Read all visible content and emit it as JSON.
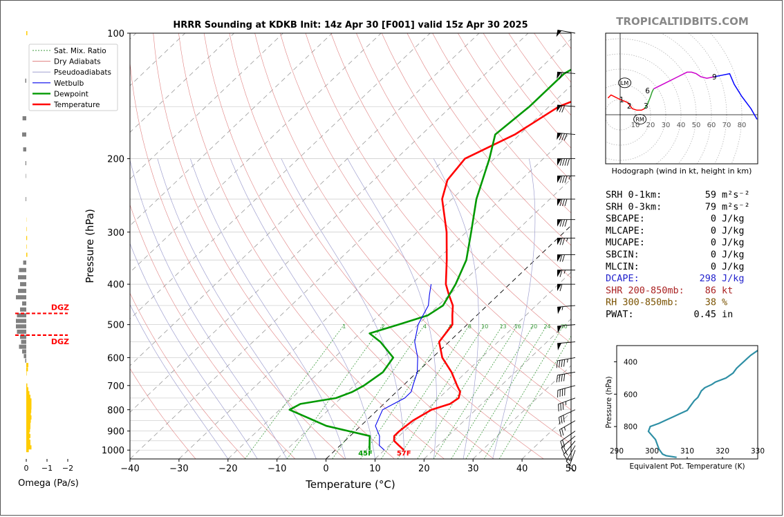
{
  "header": {
    "title": "HRRR Sounding at KDKB Init: 14z Apr 30 [F001] valid 15z Apr 30 2025",
    "watermark": "TROPICALTIDBITS.COM"
  },
  "colors": {
    "temperature": "#ff0000",
    "dewpoint": "#009900",
    "wetbulb": "#0000ee",
    "dry_adiabat": "#e08080",
    "pseudoadiabat": "#a0a0d0",
    "mixing_ratio": "#3c9a3c",
    "isotherm": "#888888",
    "omega_down": "#808080",
    "omega_up": "#ffcc00",
    "hodo_low": "#ff0000",
    "hodo_mid": "#2ca02c",
    "hodo_upper": "#cc00cc",
    "hodo_top": "#0000ff",
    "theta_e": "#2e8fa5",
    "dcape": "#2222cc",
    "shr": "#aa2222",
    "rh": "#7a5200"
  },
  "chart_data": [
    {
      "type": "line",
      "name": "skew-t",
      "xlabel": "Temperature (°C)",
      "ylabel": "Pressure (hPa)",
      "xlim": [
        -40,
        50
      ],
      "ylim": [
        1050,
        100
      ],
      "y_scale": "log",
      "x_ticks": [
        "−40",
        "−30",
        "−20",
        "−10",
        "0",
        "10",
        "20",
        "30",
        "40",
        "50"
      ],
      "x_tick_values": [
        -40,
        -30,
        -20,
        -10,
        0,
        10,
        20,
        30,
        40,
        50
      ],
      "y_ticks": [
        "100",
        "200",
        "300",
        "400",
        "500",
        "600",
        "700",
        "800",
        "900",
        "1000"
      ],
      "y_tick_values": [
        100,
        200,
        300,
        400,
        500,
        600,
        700,
        800,
        900,
        1000
      ],
      "grid": true,
      "legend_position": "top-left",
      "legend": [
        "Sat. Mix. Ratio",
        "Dry Adiabats",
        "Pseudoadiabats",
        "Wetbulb",
        "Dewpoint",
        "Temperature"
      ],
      "mixing_ratio_labels": [
        "1",
        "2",
        "4",
        "6",
        "8",
        "10",
        "13",
        "16",
        "20",
        "24",
        "30",
        "36"
      ],
      "mixing_ratio_values": [
        1,
        2,
        4,
        6,
        8,
        10,
        13,
        16,
        20,
        24,
        30,
        36
      ],
      "surface_labels": {
        "dewpoint": "45F",
        "temperature": "57F"
      },
      "series": [
        {
          "name": "Temperature",
          "points": [
            [
              14,
              1000
            ],
            [
              12,
              975
            ],
            [
              10,
              950
            ],
            [
              9,
              925
            ],
            [
              9,
              900
            ],
            [
              9.5,
              850
            ],
            [
              11,
              800
            ],
            [
              13.5,
              775
            ],
            [
              14,
              750
            ],
            [
              13,
              725
            ],
            [
              11,
              700
            ],
            [
              7,
              650
            ],
            [
              2,
              600
            ],
            [
              -2,
              550
            ],
            [
              -3,
              500
            ],
            [
              -5,
              475
            ],
            [
              -7,
              450
            ],
            [
              -10,
              425
            ],
            [
              -13,
              400
            ],
            [
              -18,
              350
            ],
            [
              -24,
              300
            ],
            [
              -32,
              250
            ],
            [
              -35,
              225
            ],
            [
              -36,
              200
            ],
            [
              -31,
              175
            ],
            [
              -28,
              150
            ],
            [
              -18,
              125
            ],
            [
              -12,
              100
            ]
          ]
        },
        {
          "name": "Dewpoint",
          "points": [
            [
              7,
              1000
            ],
            [
              6,
              975
            ],
            [
              4,
              925
            ],
            [
              -7,
              875
            ],
            [
              -18,
              800
            ],
            [
              -17,
              775
            ],
            [
              -11,
              750
            ],
            [
              -9,
              725
            ],
            [
              -8,
              700
            ],
            [
              -7,
              650
            ],
            [
              -8,
              600
            ],
            [
              -14,
              550
            ],
            [
              -18,
              525
            ],
            [
              -14,
              500
            ],
            [
              -10,
              475
            ],
            [
              -9,
              450
            ],
            [
              -11,
              400
            ],
            [
              -14,
              350
            ],
            [
              -19,
              300
            ],
            [
              -25,
              250
            ],
            [
              -31,
              200
            ],
            [
              -35,
              175
            ],
            [
              -34,
              150
            ],
            [
              -34,
              125
            ],
            [
              -28,
              100
            ]
          ]
        },
        {
          "name": "Wetbulb",
          "points": [
            [
              10,
              1000
            ],
            [
              8,
              975
            ],
            [
              6,
              925
            ],
            [
              3,
              875
            ],
            [
              1,
              800
            ],
            [
              2,
              775
            ],
            [
              3,
              750
            ],
            [
              3,
              725
            ],
            [
              2,
              700
            ],
            [
              0,
              650
            ],
            [
              -3,
              600
            ],
            [
              -7,
              550
            ],
            [
              -10,
              500
            ],
            [
              -11,
              475
            ],
            [
              -12,
              450
            ],
            [
              -14,
              425
            ],
            [
              -16,
              400
            ]
          ]
        }
      ]
    },
    {
      "type": "bar",
      "name": "omega",
      "xlabel": "Omega (Pa/s)",
      "x_ticks": [
        "0",
        "−1",
        "−2"
      ],
      "x_tick_values": [
        0,
        -1,
        -2
      ],
      "dgz_labels": [
        "DGZ",
        "DGZ"
      ],
      "dgz_levels": [
        470,
        530
      ],
      "levels": [
        1000,
        985,
        970,
        955,
        940,
        925,
        910,
        895,
        880,
        865,
        850,
        835,
        820,
        805,
        790,
        775,
        760,
        745,
        730,
        715,
        700,
        685,
        670,
        655,
        640,
        625,
        610,
        595,
        580,
        565,
        550,
        535,
        520,
        505,
        490,
        475,
        460,
        445,
        430,
        415,
        400,
        385,
        370,
        355,
        340,
        325,
        310,
        295,
        280,
        265,
        250,
        235,
        220,
        205,
        190,
        175,
        160,
        145,
        130,
        115,
        100
      ],
      "values": [
        0.12,
        0.25,
        0.2,
        0.2,
        0.15,
        0.2,
        0.15,
        0.18,
        0.2,
        0.2,
        0.22,
        0.25,
        0.22,
        0.24,
        0.25,
        0.25,
        0.25,
        0.2,
        0.15,
        0.1,
        0.05,
        0,
        0,
        0.02,
        0.08,
        0.1,
        -0.05,
        -0.12,
        -0.2,
        -0.35,
        -0.25,
        -0.3,
        -0.45,
        -0.5,
        -0.5,
        -0.45,
        -0.3,
        -0.2,
        -0.5,
        -0.4,
        -0.3,
        -0.4,
        -0.35,
        -0.15,
        0.05,
        0.02,
        0.04,
        0.02,
        0.01,
        0,
        -0.03,
        0,
        -0.02,
        -0.04,
        -0.15,
        -0.2,
        -0.18,
        0,
        -0.05,
        0,
        0.05
      ]
    },
    {
      "type": "line",
      "name": "hodograph",
      "xlabel": "Hodograph (wind in kt, height in km)",
      "ring_labels": [
        "10",
        "20",
        "30",
        "40",
        "50",
        "60",
        "70",
        "80"
      ],
      "ring_values": [
        10,
        20,
        30,
        40,
        50,
        60,
        70,
        80
      ],
      "height_labels": [
        {
          "text": "1",
          "u": 1,
          "v": 10
        },
        {
          "text": "2",
          "u": 6,
          "v": 6
        },
        {
          "text": "3",
          "u": 17,
          "v": 6
        },
        {
          "text": "6",
          "u": 18,
          "v": 16
        },
        {
          "text": "9",
          "u": 62,
          "v": 25
        }
      ],
      "storm_motion": [
        {
          "text": "LM",
          "u": 3,
          "v": 21
        },
        {
          "text": "RM",
          "u": 13,
          "v": -3
        }
      ],
      "series": [
        {
          "name": "0-3 km",
          "points": [
            [
              -8,
              11
            ],
            [
              -6,
              13
            ],
            [
              -4,
              12
            ],
            [
              0,
              10
            ],
            [
              5,
              8
            ],
            [
              8,
              4
            ],
            [
              11,
              3
            ],
            [
              14,
              3
            ],
            [
              16,
              4
            ]
          ]
        },
        {
          "name": "3-6 km",
          "points": [
            [
              16,
              4
            ],
            [
              18,
              7
            ],
            [
              20,
              12
            ],
            [
              21,
              15
            ],
            [
              22,
              17
            ]
          ]
        },
        {
          "name": "6-9 km",
          "points": [
            [
              22,
              17
            ],
            [
              30,
              21
            ],
            [
              38,
              25
            ],
            [
              44,
              28
            ],
            [
              47,
              28
            ],
            [
              50,
              27
            ],
            [
              53,
              25
            ],
            [
              57,
              24
            ],
            [
              62,
              25
            ]
          ]
        },
        {
          "name": "9+ km",
          "points": [
            [
              62,
              25
            ],
            [
              67,
              26
            ],
            [
              72,
              27
            ],
            [
              75,
              20
            ],
            [
              80,
              12
            ],
            [
              86,
              4
            ],
            [
              90,
              -3
            ]
          ]
        }
      ]
    },
    {
      "type": "line",
      "name": "theta-e",
      "xlabel": "Equivalent Pot. Temperature (K)",
      "ylabel": "Pressure (hPa)",
      "xlim": [
        290,
        330
      ],
      "ylim": [
        1000,
        300
      ],
      "x_ticks": [
        "290",
        "300",
        "310",
        "320",
        "330"
      ],
      "x_tick_values": [
        290,
        300,
        310,
        320,
        330
      ],
      "y_ticks": [
        "400",
        "600",
        "800"
      ],
      "y_tick_values": [
        400,
        600,
        800
      ],
      "series": [
        {
          "name": "Theta-e",
          "points": [
            [
              307,
              990
            ],
            [
              304,
              980
            ],
            [
              303,
              970
            ],
            [
              302,
              940
            ],
            [
              301,
              880
            ],
            [
              299,
              830
            ],
            [
              299.5,
              800
            ],
            [
              302,
              780
            ],
            [
              304,
              760
            ],
            [
              306,
              740
            ],
            [
              308,
              720
            ],
            [
              310,
              700
            ],
            [
              311,
              670
            ],
            [
              312,
              640
            ],
            [
              313,
              620
            ],
            [
              313.5,
              600
            ],
            [
              314,
              580
            ],
            [
              315,
              560
            ],
            [
              317,
              540
            ],
            [
              318,
              525
            ],
            [
              321,
              500
            ],
            [
              323,
              470
            ],
            [
              324,
              440
            ],
            [
              325,
              420
            ],
            [
              326,
              400
            ],
            [
              327,
              380
            ],
            [
              328,
              360
            ],
            [
              330,
              330
            ]
          ]
        }
      ]
    }
  ],
  "stats": [
    {
      "label": "SRH 0-1km:",
      "value": "59",
      "unit": "m²s⁻²",
      "color": "#000000"
    },
    {
      "label": "SRH 0-3km:",
      "value": "79",
      "unit": "m²s⁻²",
      "color": "#000000"
    },
    {
      "label": "SBCAPE:",
      "value": "0",
      "unit": "J/kg",
      "color": "#000000"
    },
    {
      "label": "MLCAPE:",
      "value": "0",
      "unit": "J/kg",
      "color": "#000000"
    },
    {
      "label": "MUCAPE:",
      "value": "0",
      "unit": "J/kg",
      "color": "#000000"
    },
    {
      "label": "SBCIN:",
      "value": "0",
      "unit": "J/kg",
      "color": "#000000"
    },
    {
      "label": "MLCIN:",
      "value": "0",
      "unit": "J/kg",
      "color": "#000000"
    },
    {
      "label": "DCAPE:",
      "value": "298",
      "unit": "J/kg",
      "color": "#2222cc"
    },
    {
      "label": "SHR 200-850mb:",
      "value": "86",
      "unit": "kt",
      "color": "#aa2222"
    },
    {
      "label": "RH 300-850mb:",
      "value": "38",
      "unit": "%",
      "color": "#7a5200"
    },
    {
      "label": "PWAT:",
      "value": "0.45",
      "unit": "in",
      "color": "#000000"
    }
  ],
  "wind_barbs": [
    {
      "p": 1000,
      "dir": 200,
      "kt": 10
    },
    {
      "p": 975,
      "dir": 210,
      "kt": 15
    },
    {
      "p": 950,
      "dir": 220,
      "kt": 15
    },
    {
      "p": 925,
      "dir": 230,
      "kt": 20
    },
    {
      "p": 900,
      "dir": 235,
      "kt": 20
    },
    {
      "p": 850,
      "dir": 240,
      "kt": 25
    },
    {
      "p": 800,
      "dir": 245,
      "kt": 30
    },
    {
      "p": 750,
      "dir": 250,
      "kt": 35
    },
    {
      "p": 700,
      "dir": 255,
      "kt": 40
    },
    {
      "p": 650,
      "dir": 260,
      "kt": 40
    },
    {
      "p": 600,
      "dir": 260,
      "kt": 45
    },
    {
      "p": 550,
      "dir": 265,
      "kt": 50
    },
    {
      "p": 500,
      "dir": 265,
      "kt": 50
    },
    {
      "p": 450,
      "dir": 265,
      "kt": 55
    },
    {
      "p": 400,
      "dir": 270,
      "kt": 60
    },
    {
      "p": 370,
      "dir": 270,
      "kt": 65
    },
    {
      "p": 340,
      "dir": 270,
      "kt": 70
    },
    {
      "p": 310,
      "dir": 270,
      "kt": 75
    },
    {
      "p": 280,
      "dir": 270,
      "kt": 80
    },
    {
      "p": 250,
      "dir": 270,
      "kt": 80
    },
    {
      "p": 220,
      "dir": 270,
      "kt": 85
    },
    {
      "p": 200,
      "dir": 270,
      "kt": 90
    },
    {
      "p": 175,
      "dir": 275,
      "kt": 80
    },
    {
      "p": 150,
      "dir": 275,
      "kt": 70
    },
    {
      "p": 125,
      "dir": 275,
      "kt": 60
    },
    {
      "p": 100,
      "dir": 280,
      "kt": 50
    }
  ]
}
